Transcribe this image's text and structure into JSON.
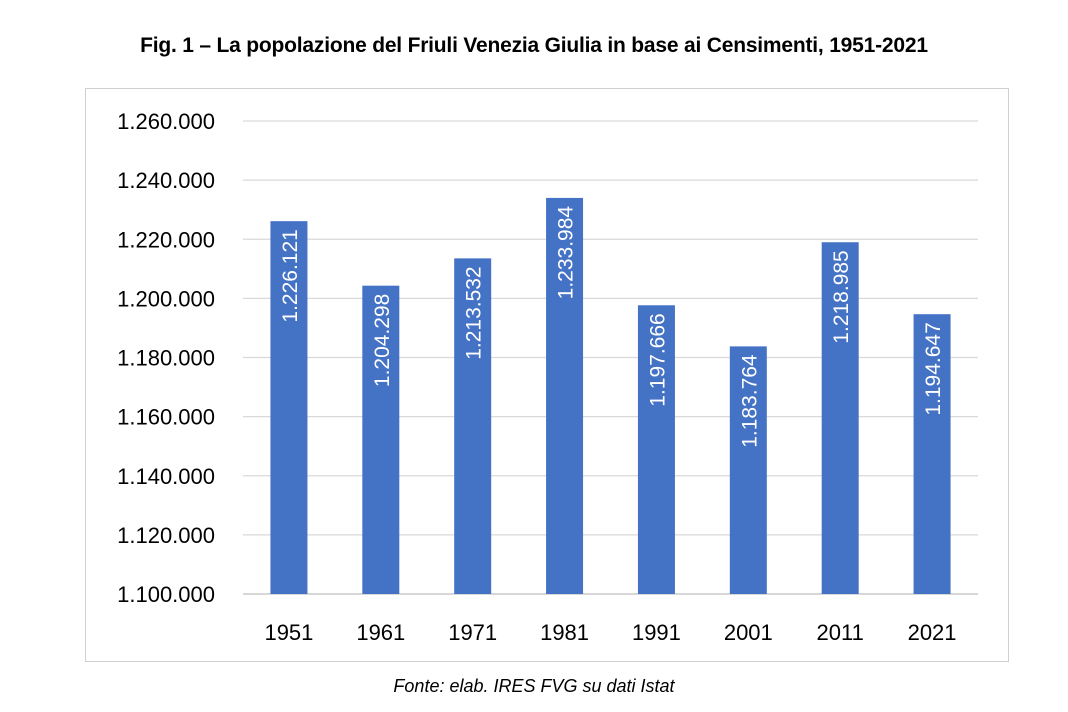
{
  "title": "Fig. 1 – La popolazione del Friuli Venezia Giulia in base ai Censimenti, 1951-2021",
  "source": "Fonte: elab. IRES FVG su dati Istat",
  "chart_data": {
    "type": "bar",
    "categories": [
      "1951",
      "1961",
      "1971",
      "1981",
      "1991",
      "2001",
      "2011",
      "2021"
    ],
    "values": [
      1226121,
      1204298,
      1213532,
      1233984,
      1197666,
      1183764,
      1218985,
      1194647
    ],
    "data_labels": [
      "1.226.121",
      "1.204.298",
      "1.213.532",
      "1.233.984",
      "1.197.666",
      "1.183.764",
      "1.218.985",
      "1.194.647"
    ],
    "y_ticks": [
      1100000,
      1120000,
      1140000,
      1160000,
      1180000,
      1200000,
      1220000,
      1240000,
      1260000
    ],
    "y_tick_labels": [
      "1.100.000",
      "1.120.000",
      "1.140.000",
      "1.160.000",
      "1.180.000",
      "1.200.000",
      "1.220.000",
      "1.240.000",
      "1.260.000"
    ],
    "ylim": [
      1100000,
      1260000
    ],
    "grid": true,
    "legend": "none",
    "bar_color": "#4472c4",
    "gridline_color": "#d9d9d9",
    "label_orientation": "vertical"
  }
}
